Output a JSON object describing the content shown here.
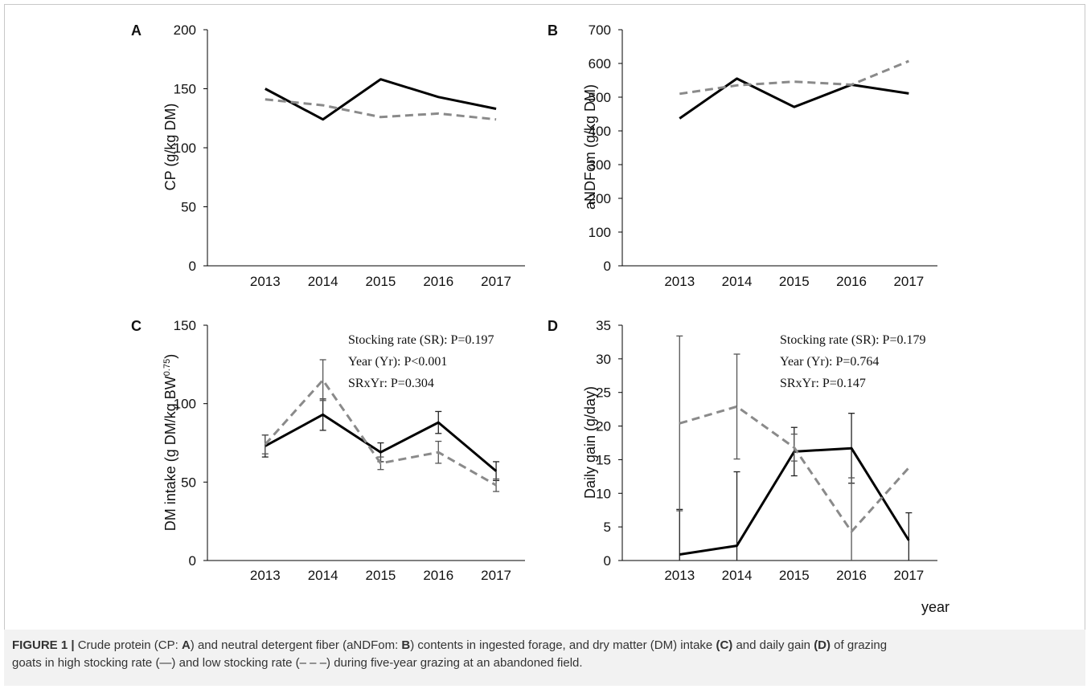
{
  "chart_data": [
    {
      "panel": "A",
      "type": "line",
      "categories": [
        "2013",
        "2014",
        "2015",
        "2016",
        "2017"
      ],
      "series": [
        {
          "style": "solid",
          "values": [
            150,
            124,
            158,
            143,
            133
          ]
        },
        {
          "style": "dashed",
          "values": [
            141,
            136,
            126,
            129,
            124
          ]
        }
      ],
      "ylabel": "CP  (g/kg DM)",
      "ylim": [
        0,
        200
      ],
      "yticks": [
        0,
        50,
        100,
        150,
        200
      ]
    },
    {
      "panel": "B",
      "type": "line",
      "categories": [
        "2013",
        "2014",
        "2015",
        "2016",
        "2017"
      ],
      "series": [
        {
          "style": "solid",
          "values": [
            437,
            555,
            471,
            537,
            511
          ]
        },
        {
          "style": "dashed",
          "values": [
            510,
            535,
            546,
            537,
            607
          ]
        }
      ],
      "ylabel": "aNDFom  (g/kg DM)",
      "ylim": [
        0,
        700
      ],
      "yticks": [
        0,
        100,
        200,
        300,
        400,
        500,
        600,
        700
      ]
    },
    {
      "panel": "C",
      "type": "line",
      "categories": [
        "2013",
        "2014",
        "2015",
        "2016",
        "2017"
      ],
      "series": [
        {
          "style": "solid",
          "values": [
            73,
            93,
            69,
            88,
            57
          ],
          "err": [
            7,
            10,
            6,
            7,
            6
          ]
        },
        {
          "style": "dashed",
          "values": [
            74,
            115,
            62,
            69,
            48
          ],
          "err": [
            6,
            13,
            4,
            7,
            4
          ]
        }
      ],
      "ylabel": "DM intake  (g DM/kg BW",
      "ylabel_sup": "0.75",
      "ylabel_end": ")",
      "ylim": [
        0,
        150
      ],
      "yticks": [
        0,
        50,
        100,
        150
      ],
      "annotations": [
        "Stocking rate (SR): P=0.197",
        "Year (Yr): P<0.001",
        "SRxYr: P=0.304"
      ]
    },
    {
      "panel": "D",
      "type": "line",
      "categories": [
        "2013",
        "2014",
        "2015",
        "2016",
        "2017"
      ],
      "series": [
        {
          "style": "solid",
          "values": [
            0.9,
            2.2,
            16.2,
            16.7,
            3.0
          ],
          "err": [
            6.7,
            11.0,
            3.6,
            5.2,
            4.1
          ]
        },
        {
          "style": "dashed",
          "values": [
            20.4,
            22.9,
            16.8,
            4.3,
            13.8
          ],
          "err": [
            13.0,
            7.8,
            2.0,
            8.0,
            0
          ]
        }
      ],
      "ylabel": "Daily gain (g/day)",
      "xlabel": "year",
      "ylim": [
        0,
        35
      ],
      "yticks": [
        0,
        5,
        10,
        15,
        20,
        25,
        30,
        35
      ],
      "annotations": [
        "Stocking rate (SR): P=0.179",
        "Year (Yr): P=0.764",
        "SRxYr: P=0.147"
      ]
    }
  ],
  "caption": {
    "part1": "FIGURE 1 | ",
    "part2": "Crude protein (CP: ",
    "part3": "A",
    "part4": ") and neutral detergent fiber (aNDFom: ",
    "part5": "B",
    "part6": ") contents in ingested forage, and dry matter (DM) intake ",
    "part7": "(C)",
    "part8": " and daily gain ",
    "part9": "(D)",
    "part10": " of grazing",
    "line2": "goats in high stocking rate (—) and low stocking rate (– – –) during five-year grazing at an abandoned field."
  },
  "colors": {
    "solid": "#000000",
    "dashed": "#8a8a8a",
    "axis": "#000000",
    "errorbar": "#555555"
  }
}
